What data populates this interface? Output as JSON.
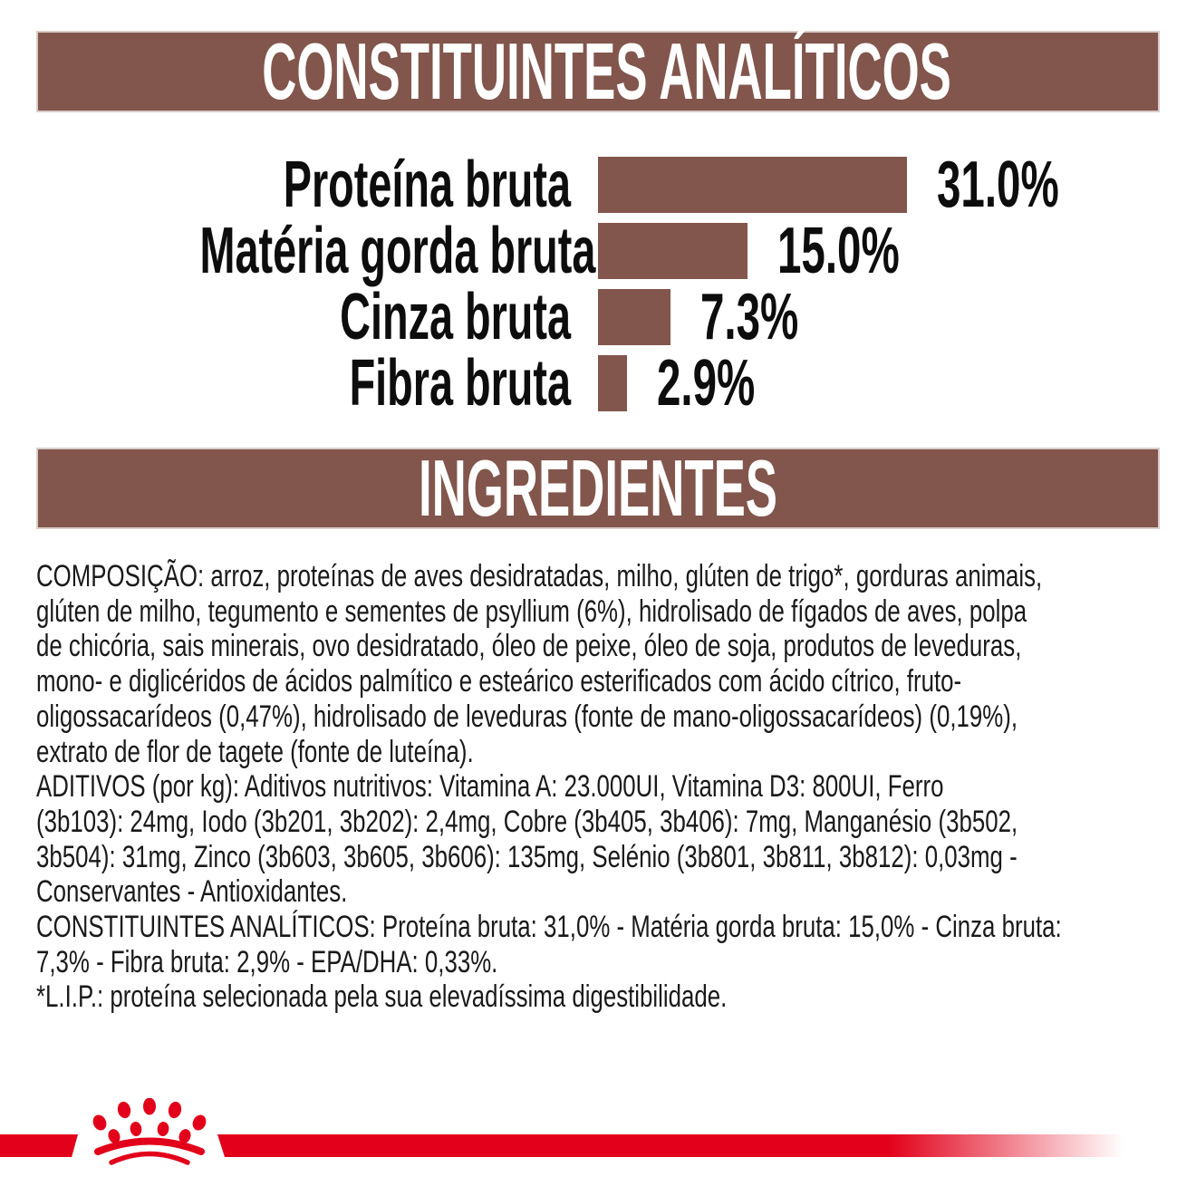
{
  "sections": {
    "analytical_title": "CONSTITUINTES ANALÍTICOS",
    "ingredients_title": "INGREDIENTES"
  },
  "chart_data": {
    "type": "bar",
    "orientation": "horizontal",
    "title": "CONSTITUINTES ANALÍTICOS",
    "categories": [
      "Proteína bruta",
      "Matéria gorda bruta",
      "Cinza bruta",
      "Fibra bruta"
    ],
    "values": [
      31.0,
      15.0,
      7.3,
      2.9
    ],
    "value_labels": [
      "31.0%",
      "15.0%",
      "7.3%",
      "2.9%"
    ],
    "unit": "%",
    "xlim": [
      0,
      33
    ],
    "grid": false,
    "bar_color": "#82564C"
  },
  "ingredients": {
    "lines": [
      "COMPOSIÇÃO: arroz, proteínas de aves desidratadas, milho, glúten de trigo*, gorduras animais,",
      "glúten de milho, tegumento e sementes de psyllium (6%), hidrolisado de fígados de aves, polpa",
      "de chicória, sais minerais, ovo desidratado, óleo de peixe, óleo de soja, produtos de leveduras,",
      "mono- e diglicéridos de ácidos palmítico e esteárico esterificados com ácido cítrico, fruto-",
      "oligossacarídeos (0,47%), hidrolisado de leveduras (fonte de mano-oligossacarídeos) (0,19%),",
      "extrato de flor de tagete (fonte de luteína).",
      "ADITIVOS (por kg): Aditivos nutritivos: Vitamina A: 23.000UI, Vitamina D3: 800UI, Ferro",
      "(3b103): 24mg, Iodo (3b201, 3b202): 2,4mg, Cobre (3b405, 3b406): 7mg, Manganésio (3b502,",
      "3b504): 31mg, Zinco (3b603, 3b605, 3b606): 135mg, Selénio (3b801, 3b811, 3b812): 0,03mg -",
      "Conservantes - Antioxidantes.",
      "CONSTITUINTES ANALÍTICOS: Proteína bruta: 31,0% - Matéria gorda bruta: 15,0% - Cinza bruta:",
      "7,3% - Fibra bruta: 2,9% - EPA/DHA: 0,33%.",
      "*L.I.P.: proteína selecionada pela sua elevadíssima digestibilidade."
    ]
  },
  "footer": {
    "logo_icon": "crown-icon",
    "stripe_color": "#E2001A"
  },
  "colors": {
    "band_brown": "#82564C",
    "band_border": "#D9CDC9",
    "brand_red": "#E2001A",
    "text": "#1A1A1A"
  }
}
